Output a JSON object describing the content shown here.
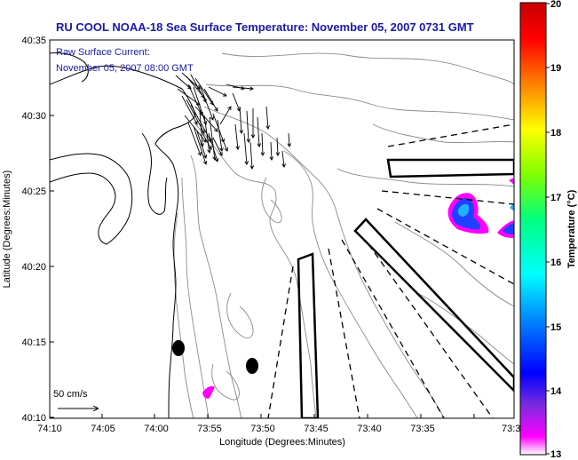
{
  "title": "RU COOL  NOAA-18  Sea Surface Temperature:  November 05, 2007 0731 GMT",
  "current_label_line1": "Raw Surface Current:",
  "current_label_line2": "November 05, 2007 08:00 GMT",
  "scale_label": "50 cm/s",
  "axes": {
    "xlabel": "Longitude (Degrees:Minutes)",
    "ylabel": "Latitude (Degrees:Minutes)",
    "xticks": [
      "74:10",
      "74:05",
      "74:00",
      "73:55",
      "73:50",
      "73:45",
      "73:40",
      "73:35",
      "73:3"
    ],
    "yticks": [
      "40:35",
      "40:30",
      "40:25",
      "40:20",
      "40:15",
      "40:10"
    ]
  },
  "colorbar": {
    "label": "Temperature (°C)",
    "min": 13,
    "max": 20,
    "ticks": [
      "20",
      "19",
      "18",
      "17",
      "16",
      "15",
      "14",
      "13"
    ],
    "colors": [
      "#ff00ff",
      "#7a2be0",
      "#0000ff",
      "#0088ff",
      "#00ffff",
      "#00ff80",
      "#80ff00",
      "#ffff00",
      "#ff8000",
      "#ff0000",
      "#d00000"
    ]
  },
  "colors": {
    "title": "#1a1aa6",
    "land_outline": "#000000",
    "bathymetry": "#8a8a8a",
    "features": "#000000"
  },
  "icons": [
    "north-arrow-vectors",
    "current-vector-arrow"
  ]
}
